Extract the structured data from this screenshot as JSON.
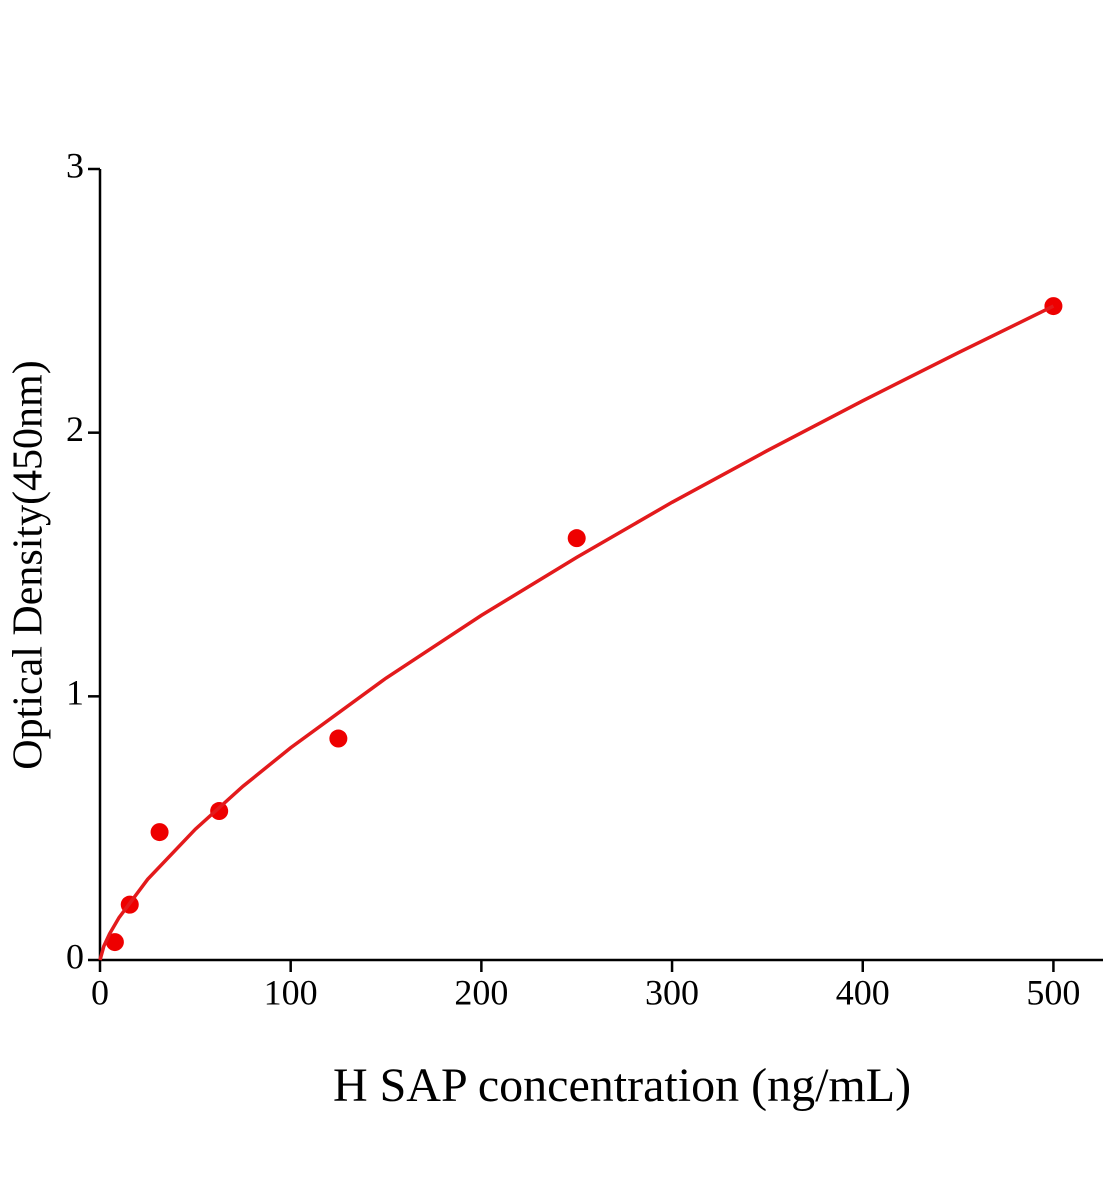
{
  "chart_data": {
    "type": "scatter",
    "x_label": "H SAP concentration (ng/mL)",
    "y_label": "Optical Density(450nm)",
    "xlim": [
      0,
      526
    ],
    "ylim": [
      0,
      3
    ],
    "xticks": [
      0,
      100,
      200,
      300,
      400,
      500
    ],
    "yticks": [
      0,
      1,
      2,
      3
    ],
    "series": [
      {
        "type": "scatter",
        "color": "#ee0000",
        "x": [
          7.8,
          15.6,
          31.25,
          62.5,
          125,
          250,
          500
        ],
        "values": [
          0.068,
          0.21,
          0.485,
          0.565,
          0.84,
          1.6,
          2.48
        ]
      },
      {
        "type": "line",
        "color": "#e31a1c",
        "x": [
          0,
          2,
          5,
          10,
          25,
          50,
          75,
          100,
          150,
          200,
          250,
          300,
          350,
          400,
          450,
          500
        ],
        "values": [
          0,
          0.052,
          0.099,
          0.161,
          0.306,
          0.496,
          0.659,
          0.805,
          1.069,
          1.307,
          1.527,
          1.736,
          1.932,
          2.121,
          2.303,
          2.48
        ]
      }
    ]
  }
}
